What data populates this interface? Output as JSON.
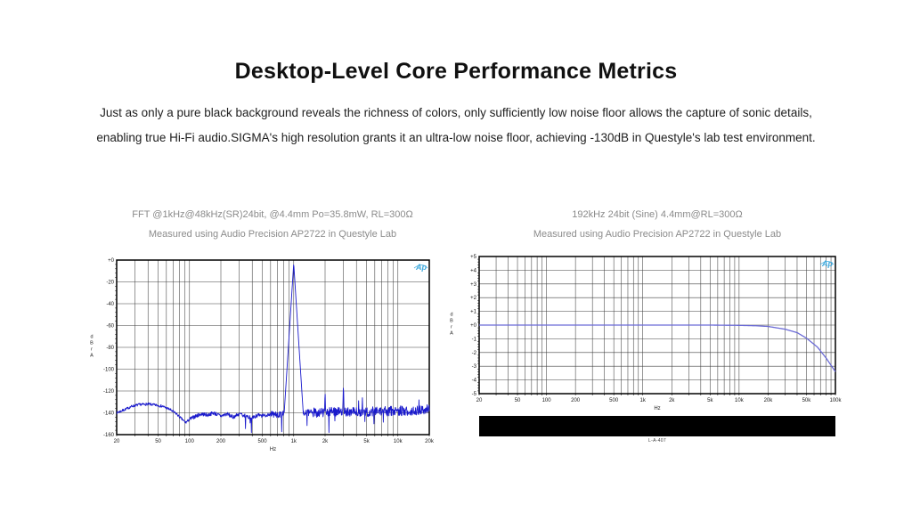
{
  "page": {
    "title": "Desktop-Level Core Performance Metrics",
    "description_line1": "Just as only a pure black background reveals the richness of colors, only sufficiently low noise floor allows the capture of sonic details,",
    "description_line2": "enabling true Hi-Fi audio.SIGMA's high resolution grants it an ultra-low noise floor, achieving -130dB in Questyle's lab test environment."
  },
  "charts": [
    {
      "caption_line1": "FFT @1kHz@48kHz(SR)24bit, @4.4mm Po=35.8mW, RL=300Ω",
      "caption_line2": "Measured using Audio Precision AP2722 in Questyle Lab"
    },
    {
      "caption_line1": "192kHz 24bit (Sine) 4.4mm@RL=300Ω",
      "caption_line2": "Measured using Audio Precision AP2722 in Questyle Lab",
      "footer_note": "L-A-407"
    }
  ],
  "logo_text": "Ap",
  "colors": {
    "fft_line": "#1a1acc",
    "fr_line": "#6b6bd6",
    "grid": "#404040",
    "border": "#000000",
    "logo": "#3fa9dc",
    "tick_text": "#1a1a1a"
  },
  "chart_data": [
    {
      "type": "line",
      "title": "FFT spectrum of 1 kHz sine, noise floor ~ -140 dB",
      "x_scale": "log",
      "xlabel": "Hz",
      "ylabel": "dBrA",
      "xlim": [
        20,
        20000
      ],
      "ylim": [
        -160,
        0
      ],
      "x_tick_values": [
        20,
        50,
        100,
        200,
        500,
        1000,
        2000,
        5000,
        10000,
        20000
      ],
      "x_tick_labels": [
        "20",
        "50",
        "100",
        "200",
        "500",
        "1k",
        "2k",
        "5k",
        "10k",
        "20k"
      ],
      "y_tick_values": [
        0,
        -20,
        -40,
        -60,
        -80,
        -100,
        -120,
        -140,
        -160
      ],
      "y_tick_labels": [
        "+0",
        "-20",
        "-40",
        "-60",
        "-80",
        "-100",
        "-120",
        "-140",
        "-160"
      ],
      "grid": true,
      "seed": 7,
      "noise_envelope": {
        "x": [
          20,
          24,
          28,
          33,
          40,
          48,
          55,
          65,
          75,
          85,
          92,
          100,
          115,
          130,
          150,
          170,
          200,
          230,
          260,
          300,
          350,
          400,
          450,
          500,
          600,
          700,
          800,
          1000,
          1300,
          2000,
          3000,
          5000,
          8000,
          12000,
          20000
        ],
        "y": [
          -140,
          -137,
          -134,
          -132.5,
          -132,
          -133,
          -134,
          -137,
          -141,
          -146,
          -149,
          -146,
          -143,
          -141,
          -142,
          -140,
          -143,
          -141,
          -144,
          -141,
          -143,
          -145,
          -142,
          -143,
          -141,
          -142,
          -141,
          -140,
          -140,
          -139.5,
          -139,
          -139,
          -138.5,
          -138,
          -137
        ]
      },
      "noise_amp": [
        [
          100,
          1.2
        ],
        [
          600,
          1.8
        ],
        [
          1500,
          3.0
        ],
        [
          100000,
          4.5
        ]
      ],
      "dips": {
        "fmin": 300,
        "p": 0.025,
        "min": 4,
        "max": 16
      },
      "ups": {
        "fmin": 2000,
        "p": 0.012,
        "min": 4,
        "max": 11
      },
      "spurs": [
        {
          "f": 1000,
          "db": -3,
          "slope": 1500
        },
        {
          "f": 2000,
          "db": -119,
          "slope": 4000
        },
        {
          "f": 3000,
          "db": -113,
          "slope": 4000
        },
        {
          "f": 4200,
          "db": -128,
          "slope": 4500
        }
      ]
    },
    {
      "type": "line",
      "title": "Frequency response, flat to 20 kHz then roll-off to -3.4 dB at 100 kHz",
      "x_scale": "log",
      "xlabel": "Hz",
      "ylabel": "dBrA",
      "xlim": [
        20,
        100000
      ],
      "ylim": [
        -5,
        5
      ],
      "x_tick_values": [
        20,
        50,
        100,
        200,
        500,
        1000,
        2000,
        5000,
        10000,
        20000,
        50000,
        100000
      ],
      "x_tick_labels": [
        "20",
        "50",
        "100",
        "200",
        "500",
        "1k",
        "2k",
        "5k",
        "10k",
        "20k",
        "50k",
        "100k"
      ],
      "y_tick_values": [
        5,
        4,
        3,
        2,
        1,
        0,
        -1,
        -2,
        -3,
        -4,
        -5
      ],
      "y_tick_labels": [
        "+5",
        "+4",
        "+3",
        "+2",
        "+1",
        "+0",
        "-1",
        "-2",
        "-3",
        "-4",
        "-5"
      ],
      "grid": true,
      "points": {
        "x": [
          20,
          50,
          100,
          1000,
          5000,
          10000,
          15000,
          20000,
          30000,
          40000,
          50000,
          65000,
          80000,
          100000
        ],
        "y": [
          0,
          0,
          0,
          0,
          0,
          -0.02,
          -0.05,
          -0.1,
          -0.3,
          -0.55,
          -0.95,
          -1.6,
          -2.4,
          -3.4
        ]
      }
    }
  ]
}
